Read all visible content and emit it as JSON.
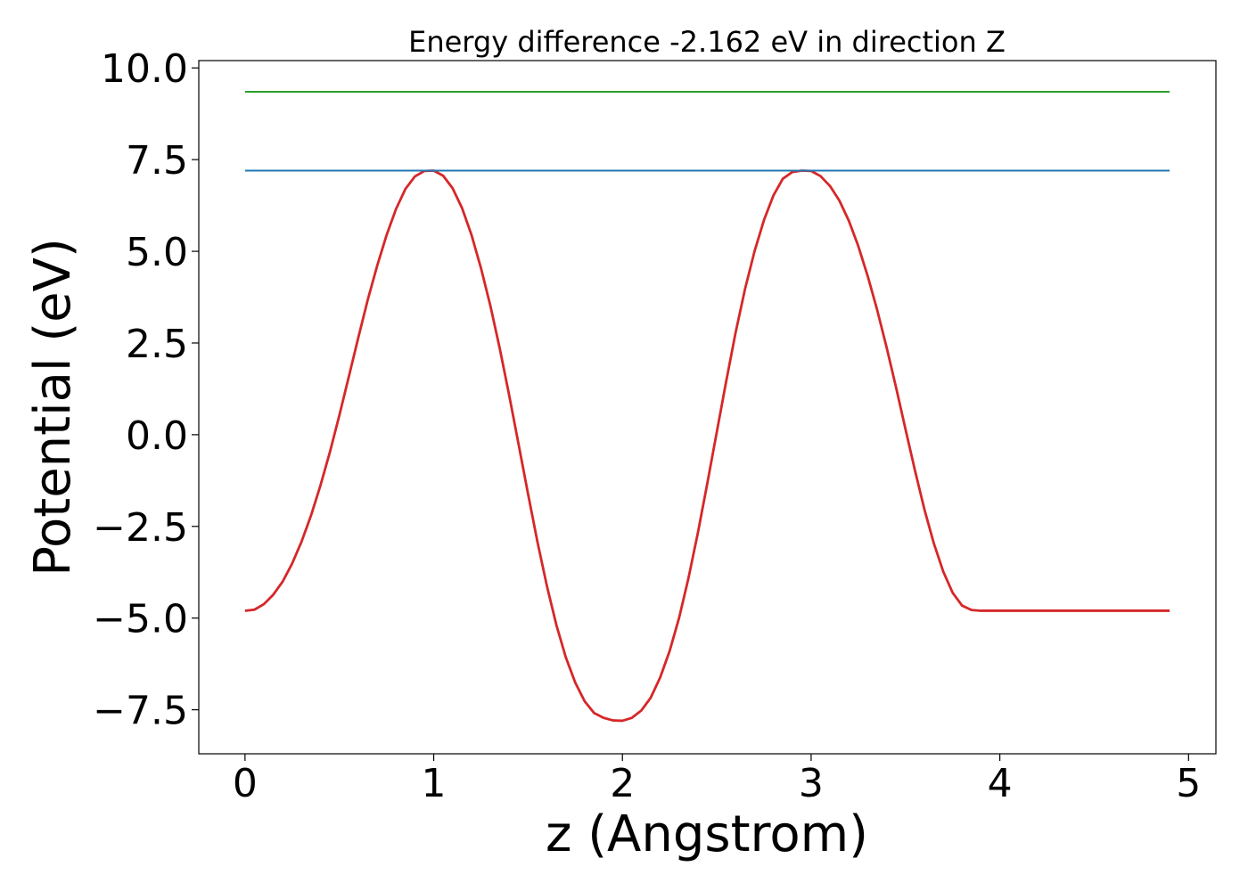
{
  "chart_data": {
    "type": "line",
    "title": "Energy difference -2.162 eV in direction Z",
    "xlabel": "z (Angstrom)",
    "ylabel": "Potential (eV)",
    "xlim": [
      -0.245,
      5.145
    ],
    "ylim": [
      -8.7,
      10.2
    ],
    "x_ticks": [
      0,
      1,
      2,
      3,
      4,
      5
    ],
    "x_tick_labels": [
      "0",
      "1",
      "2",
      "3",
      "4",
      "5"
    ],
    "y_ticks": [
      -7.5,
      -5.0,
      -2.5,
      0.0,
      2.5,
      5.0,
      7.5,
      10.0
    ],
    "y_tick_labels": [
      "−7.5",
      "−5.0",
      "−2.5",
      "0.0",
      "2.5",
      "5.0",
      "7.5",
      "10.0"
    ],
    "grid": false,
    "legend": "none",
    "series": [
      {
        "color": "#d62728",
        "style": "curve",
        "x": [
          0.0,
          0.05,
          0.1,
          0.15,
          0.2,
          0.25,
          0.3,
          0.35,
          0.4,
          0.45,
          0.5,
          0.55,
          0.6,
          0.65,
          0.7,
          0.75,
          0.8,
          0.85,
          0.9,
          0.95,
          1.0,
          1.05,
          1.1,
          1.15,
          1.2,
          1.25,
          1.3,
          1.35,
          1.4,
          1.45,
          1.5,
          1.55,
          1.6,
          1.65,
          1.7,
          1.75,
          1.8,
          1.85,
          1.9,
          1.95,
          2.0,
          2.05,
          2.1,
          2.15,
          2.2,
          2.25,
          2.3,
          2.35,
          2.4,
          2.45,
          2.5,
          2.55,
          2.6,
          2.65,
          2.7,
          2.75,
          2.8,
          2.85,
          2.9,
          2.95,
          3.0,
          3.05,
          3.1,
          3.15,
          3.2,
          3.25,
          3.3,
          3.35,
          3.4,
          3.45,
          3.5,
          3.55,
          3.6,
          3.65,
          3.7,
          3.75,
          3.8,
          3.85,
          3.9,
          3.95,
          4.0,
          4.05,
          4.1,
          4.15,
          4.2,
          4.25,
          4.3,
          4.35,
          4.4,
          4.45,
          4.5,
          4.55,
          4.6,
          4.65,
          4.7,
          4.75,
          4.8,
          4.85,
          4.9
        ],
        "y": [
          -4.8,
          -4.77,
          -4.62,
          -4.36,
          -4.0,
          -3.51,
          -2.91,
          -2.2,
          -1.38,
          -0.47,
          0.53,
          1.58,
          2.64,
          3.67,
          4.6,
          5.44,
          6.15,
          6.7,
          7.04,
          7.19,
          7.2,
          7.06,
          6.72,
          6.18,
          5.45,
          4.55,
          3.52,
          2.35,
          1.07,
          -0.27,
          -1.62,
          -2.93,
          -4.13,
          -5.19,
          -6.07,
          -6.76,
          -7.27,
          -7.59,
          -7.72,
          -7.79,
          -7.8,
          -7.72,
          -7.52,
          -7.17,
          -6.62,
          -5.9,
          -5.0,
          -3.91,
          -2.67,
          -1.32,
          0.07,
          1.46,
          2.79,
          3.98,
          5.0,
          5.85,
          6.52,
          6.98,
          7.16,
          7.2,
          7.19,
          7.05,
          6.78,
          6.38,
          5.83,
          5.14,
          4.32,
          3.4,
          2.38,
          1.29,
          0.15,
          -0.97,
          -2.03,
          -2.96,
          -3.73,
          -4.31,
          -4.66,
          -4.78,
          -4.8,
          -4.8,
          -4.8,
          -4.8,
          -4.8,
          -4.8,
          -4.8,
          -4.8,
          -4.8,
          -4.8,
          -4.8,
          -4.8,
          -4.8,
          -4.8,
          -4.8,
          -4.8,
          -4.8,
          -4.8,
          -4.8,
          -4.8,
          -4.8
        ]
      },
      {
        "color": "#1f77b4",
        "style": "horizontal",
        "x": [
          0.0,
          4.9
        ],
        "y": [
          7.2,
          7.2
        ]
      },
      {
        "color": "#2ca02c",
        "style": "horizontal",
        "x": [
          0.0,
          4.9
        ],
        "y": [
          9.35,
          9.35
        ]
      }
    ]
  }
}
